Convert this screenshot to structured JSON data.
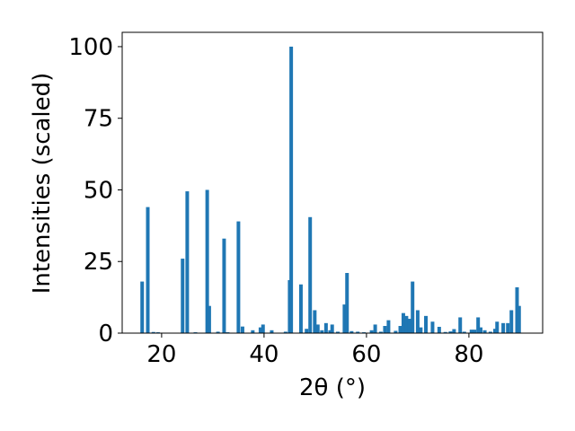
{
  "chart_data": {
    "type": "bar",
    "xlabel": "2θ (°)",
    "ylabel": "Intensities (scaled)",
    "xlim": [
      12.3,
      94.4
    ],
    "ylim": [
      0,
      105
    ],
    "x_ticks": [
      20,
      40,
      60,
      80
    ],
    "y_ticks": [
      0,
      25,
      50,
      75,
      100
    ],
    "grid": false,
    "bar_color": "#1f77b4",
    "bar_width": 0.7,
    "x": [
      16.2,
      17.3,
      18.4,
      19.3,
      24.1,
      25.0,
      26.6,
      28.9,
      29.3,
      31.0,
      32.2,
      32.9,
      35.0,
      35.8,
      37.8,
      39.3,
      39.8,
      41.5,
      44.2,
      45.0,
      45.3,
      47.2,
      48.3,
      49.0,
      49.9,
      50.5,
      51.3,
      52.1,
      52.9,
      53.3,
      54.4,
      55.7,
      56.2,
      57.1,
      58.3,
      59.5,
      61.0,
      61.7,
      62.8,
      63.6,
      64.3,
      65.7,
      66.6,
      67.2,
      67.8,
      68.4,
      69.0,
      70.0,
      70.6,
      71.6,
      72.9,
      74.2,
      75.4,
      76.4,
      77.1,
      78.3,
      79.1,
      80.5,
      81.1,
      81.8,
      82.3,
      83.1,
      84.2,
      85.1,
      85.5,
      86.7,
      87.6,
      88.3,
      89.4,
      89.8
    ],
    "values": [
      18,
      44,
      0.4,
      0.3,
      26,
      49.5,
      0.3,
      50,
      9.5,
      0.5,
      33,
      0.3,
      39,
      2.3,
      1,
      2,
      3,
      1,
      0.5,
      18.5,
      100,
      17,
      1.5,
      40.5,
      8,
      3,
      1,
      3.5,
      1,
      3,
      0.5,
      10,
      21,
      0.7,
      0.5,
      0.3,
      1,
      3,
      0.5,
      2.5,
      4.5,
      0.8,
      2.5,
      7,
      6,
      5,
      18,
      8,
      2,
      6,
      4,
      2.2,
      0.4,
      0.6,
      1.4,
      5.5,
      0.5,
      1.2,
      1.2,
      5.5,
      2,
      1,
      0.5,
      1.5,
      4,
      3.5,
      3.5,
      8,
      16,
      9.5
    ]
  }
}
